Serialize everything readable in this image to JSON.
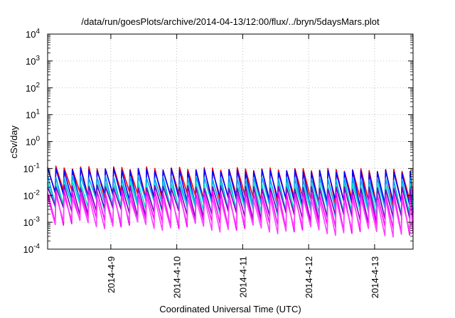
{
  "chart_data": {
    "type": "line",
    "title": "/data/run/goesPlots/archive/2014-04-13/12:00/flux/../bryn/5daysMars.plot",
    "xlabel": "Coordinated Universal Time (UTC)",
    "ylabel": "cSv/day",
    "yscale": "log",
    "ylim": [
      0.0001,
      10000
    ],
    "xlim": [
      "2014-04-08 01:00",
      "2014-04-13 14:00"
    ],
    "grid": true,
    "y_ticks": [
      {
        "value": 0.0001,
        "base": "10",
        "exp": "-4"
      },
      {
        "value": 0.001,
        "base": "10",
        "exp": "-3"
      },
      {
        "value": 0.01,
        "base": "10",
        "exp": "-2"
      },
      {
        "value": 0.1,
        "base": "10",
        "exp": "-1"
      },
      {
        "value": 1,
        "base": "10",
        "exp": "0"
      },
      {
        "value": 10,
        "base": "10",
        "exp": "1"
      },
      {
        "value": 100,
        "base": "10",
        "exp": "2"
      },
      {
        "value": 1000,
        "base": "10",
        "exp": "3"
      },
      {
        "value": 10000,
        "base": "10",
        "exp": "4"
      }
    ],
    "x_ticks": [
      {
        "value": "2014-04-09 00:00",
        "label": "2014-4-9"
      },
      {
        "value": "2014-04-10 00:00",
        "label": "2014-4-10"
      },
      {
        "value": "2014-04-11 00:00",
        "label": "2014-4-11"
      },
      {
        "value": "2014-04-12 00:00",
        "label": "2014-4-12"
      },
      {
        "value": "2014-04-13 00:00",
        "label": "2014-4-13"
      }
    ],
    "sawtooth_period_hours": 3,
    "series": [
      {
        "color": "#ff0000",
        "start_peak": 0.11,
        "end_peak": 0.085,
        "start_trough": 0.012,
        "end_trough": 0.005
      },
      {
        "color": "#0000ff",
        "start_peak": 0.095,
        "end_peak": 0.075,
        "start_trough": 0.01,
        "end_trough": 0.004
      },
      {
        "color": "#00a0ff",
        "start_peak": 0.05,
        "end_peak": 0.04,
        "start_trough": 0.006,
        "end_trough": 0.0025
      },
      {
        "color": "#00e0c0",
        "start_peak": 0.03,
        "end_peak": 0.025,
        "start_trough": 0.004,
        "end_trough": 0.0018
      },
      {
        "color": "#8000c0",
        "start_peak": 0.022,
        "end_peak": 0.018,
        "start_trough": 0.003,
        "end_trough": 0.0012
      },
      {
        "color": "#ff00ff",
        "start_peak": 0.014,
        "end_peak": 0.011,
        "start_trough": 0.0012,
        "end_trough": 0.0005
      },
      {
        "color": "#ff40ff",
        "start_peak": 0.009,
        "end_peak": 0.007,
        "start_trough": 0.001,
        "end_trough": 0.0004
      }
    ]
  }
}
